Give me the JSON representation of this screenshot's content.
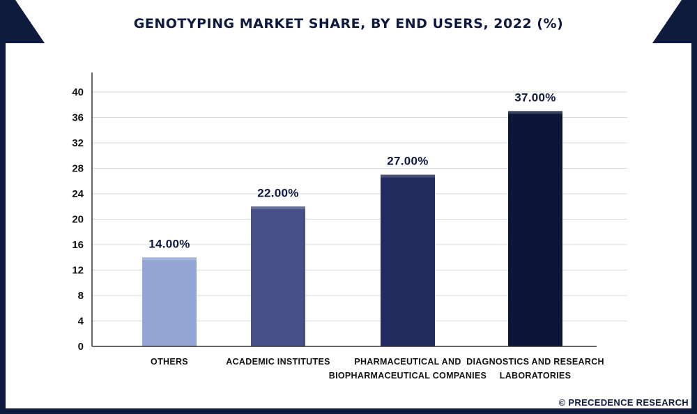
{
  "chart_data": {
    "type": "bar",
    "title": "GENOTYPING MARKET SHARE, BY END USERS, 2022 (%)",
    "categories": [
      [
        "OTHERS"
      ],
      [
        "ACADEMIC INSTITUTES"
      ],
      [
        "PHARMACEUTICAL AND",
        "BIOPHARMACEUTICAL COMPANIES"
      ],
      [
        "DIAGNOSTICS AND RESEARCH",
        "LABORATORIES"
      ]
    ],
    "values": [
      14,
      22,
      27,
      37
    ],
    "value_labels": [
      "14.00%",
      "22.00%",
      "27.00%",
      "37.00%"
    ],
    "bar_colors": [
      "#94a6d6",
      "#475187",
      "#242b5e",
      "#0d1538"
    ],
    "ylim": [
      0,
      40
    ],
    "yticks": [
      0,
      4,
      8,
      12,
      16,
      20,
      24,
      28,
      32,
      36,
      40
    ],
    "grid": true,
    "xlabel": "",
    "ylabel": ""
  },
  "credit": "© PRECEDENCE RESEARCH",
  "colors": {
    "frame": "#0e1a3e",
    "accent": "#3a4b8a",
    "grid": "#d9d9d9"
  }
}
